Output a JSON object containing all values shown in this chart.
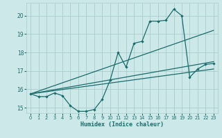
{
  "xlabel": "Humidex (Indice chaleur)",
  "bg_color": "#cce8e8",
  "line_color": "#1a6b6b",
  "grid_color": "#aacccc",
  "xlim": [
    -0.5,
    23.5
  ],
  "ylim": [
    14.7,
    20.7
  ],
  "yticks": [
    15,
    16,
    17,
    18,
    19,
    20
  ],
  "xticks": [
    0,
    1,
    2,
    3,
    4,
    5,
    6,
    7,
    8,
    9,
    10,
    11,
    12,
    13,
    14,
    15,
    16,
    17,
    18,
    19,
    20,
    21,
    22,
    23
  ],
  "series1_x": [
    0,
    1,
    2,
    3,
    4,
    5,
    6,
    7,
    8,
    9,
    10,
    11,
    12,
    13,
    14,
    15,
    16,
    17,
    18,
    19,
    20,
    21,
    22,
    23
  ],
  "series1_y": [
    15.75,
    15.6,
    15.6,
    15.8,
    15.65,
    15.1,
    14.8,
    14.8,
    14.9,
    15.45,
    16.5,
    18.0,
    17.2,
    18.5,
    18.6,
    19.7,
    19.7,
    19.75,
    20.35,
    20.0,
    16.65,
    17.1,
    17.35,
    17.4
  ],
  "line2_x": [
    0,
    23
  ],
  "line2_y": [
    15.75,
    19.2
  ],
  "line3_x": [
    0,
    23
  ],
  "line3_y": [
    15.75,
    17.5
  ],
  "line4_x": [
    0,
    23
  ],
  "line4_y": [
    15.75,
    17.1
  ]
}
